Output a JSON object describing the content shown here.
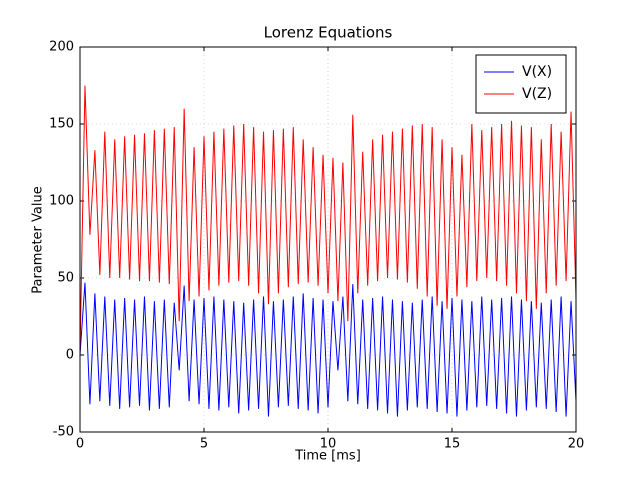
{
  "chart_data": {
    "type": "line",
    "title": "Lorenz Equations",
    "xlabel": "Time [ms]",
    "ylabel": "Parameter Value",
    "x": [
      0,
      0.2,
      0.4,
      0.6,
      0.8,
      1,
      1.2,
      1.4,
      1.6,
      1.8,
      2,
      2.2,
      2.4,
      2.6,
      2.8,
      3,
      3.2,
      3.4,
      3.6,
      3.8,
      4,
      4.2,
      4.4,
      4.6,
      4.8,
      5,
      5.2,
      5.4,
      5.6,
      5.8,
      6,
      6.2,
      6.4,
      6.6,
      6.8,
      7,
      7.2,
      7.4,
      7.6,
      7.8,
      8,
      8.2,
      8.4,
      8.6,
      8.8,
      9,
      9.2,
      9.4,
      9.6,
      9.8,
      10,
      10.2,
      10.4,
      10.6,
      10.8,
      11,
      11.2,
      11.4,
      11.6,
      11.8,
      12,
      12.2,
      12.4,
      12.6,
      12.8,
      13,
      13.2,
      13.4,
      13.6,
      13.8,
      14,
      14.2,
      14.4,
      14.6,
      14.8,
      15,
      15.2,
      15.4,
      15.6,
      15.8,
      16,
      16.2,
      16.4,
      16.6,
      16.8,
      17,
      17.2,
      17.4,
      17.6,
      17.8,
      18,
      18.2,
      18.4,
      18.6,
      18.8,
      19,
      19.2,
      19.4,
      19.6,
      19.8,
      20
    ],
    "series": [
      {
        "name": "V(X)",
        "color": "#0000ff",
        "values": [
          0,
          47,
          -32,
          40,
          -30,
          38,
          -33,
          36,
          -35,
          37,
          -34,
          36,
          -33,
          38,
          -36,
          35,
          -35,
          36,
          -34,
          34,
          -10,
          45,
          -30,
          36,
          -32,
          37,
          -35,
          38,
          -36,
          36,
          -34,
          35,
          -38,
          34,
          -36,
          36,
          -35,
          38,
          -40,
          35,
          -34,
          36,
          -33,
          38,
          -35,
          40,
          -36,
          37,
          -38,
          36,
          -34,
          35,
          -10,
          38,
          -30,
          46,
          -32,
          36,
          -35,
          37,
          -36,
          38,
          -38,
          36,
          -40,
          35,
          -36,
          34,
          -34,
          36,
          -35,
          38,
          -37,
          35,
          -38,
          37,
          -40,
          36,
          -36,
          35,
          -34,
          38,
          -33,
          36,
          -35,
          37,
          -38,
          38,
          -40,
          36,
          -36,
          35,
          -34,
          34,
          -35,
          36,
          -37,
          38,
          -40,
          35,
          -30
        ]
      },
      {
        "name": "V(Z)",
        "color": "#ff0000",
        "values": [
          0,
          175,
          78,
          133,
          52,
          145,
          50,
          140,
          50,
          142,
          49,
          143,
          48,
          144,
          48,
          146,
          47,
          147,
          46,
          148,
          22,
          160,
          35,
          135,
          38,
          142,
          42,
          145,
          45,
          147,
          47,
          149,
          48,
          150,
          45,
          148,
          40,
          145,
          33,
          146,
          40,
          147,
          44,
          148,
          46,
          140,
          47,
          135,
          45,
          130,
          40,
          128,
          35,
          125,
          22,
          156,
          40,
          132,
          45,
          140,
          48,
          143,
          50,
          145,
          49,
          147,
          47,
          149,
          43,
          150,
          38,
          148,
          32,
          140,
          30,
          135,
          38,
          130,
          44,
          150,
          48,
          146,
          50,
          148,
          48,
          150,
          45,
          152,
          40,
          149,
          35,
          148,
          30,
          140,
          40,
          150,
          45,
          145,
          48,
          158,
          36
        ]
      }
    ],
    "xlim": [
      0,
      20
    ],
    "xticks": [
      0,
      5,
      10,
      15,
      20
    ],
    "ylim": [
      -50,
      200
    ],
    "yticks": [
      -50,
      0,
      50,
      100,
      150,
      200
    ],
    "grid": true,
    "legend": "upper right"
  }
}
